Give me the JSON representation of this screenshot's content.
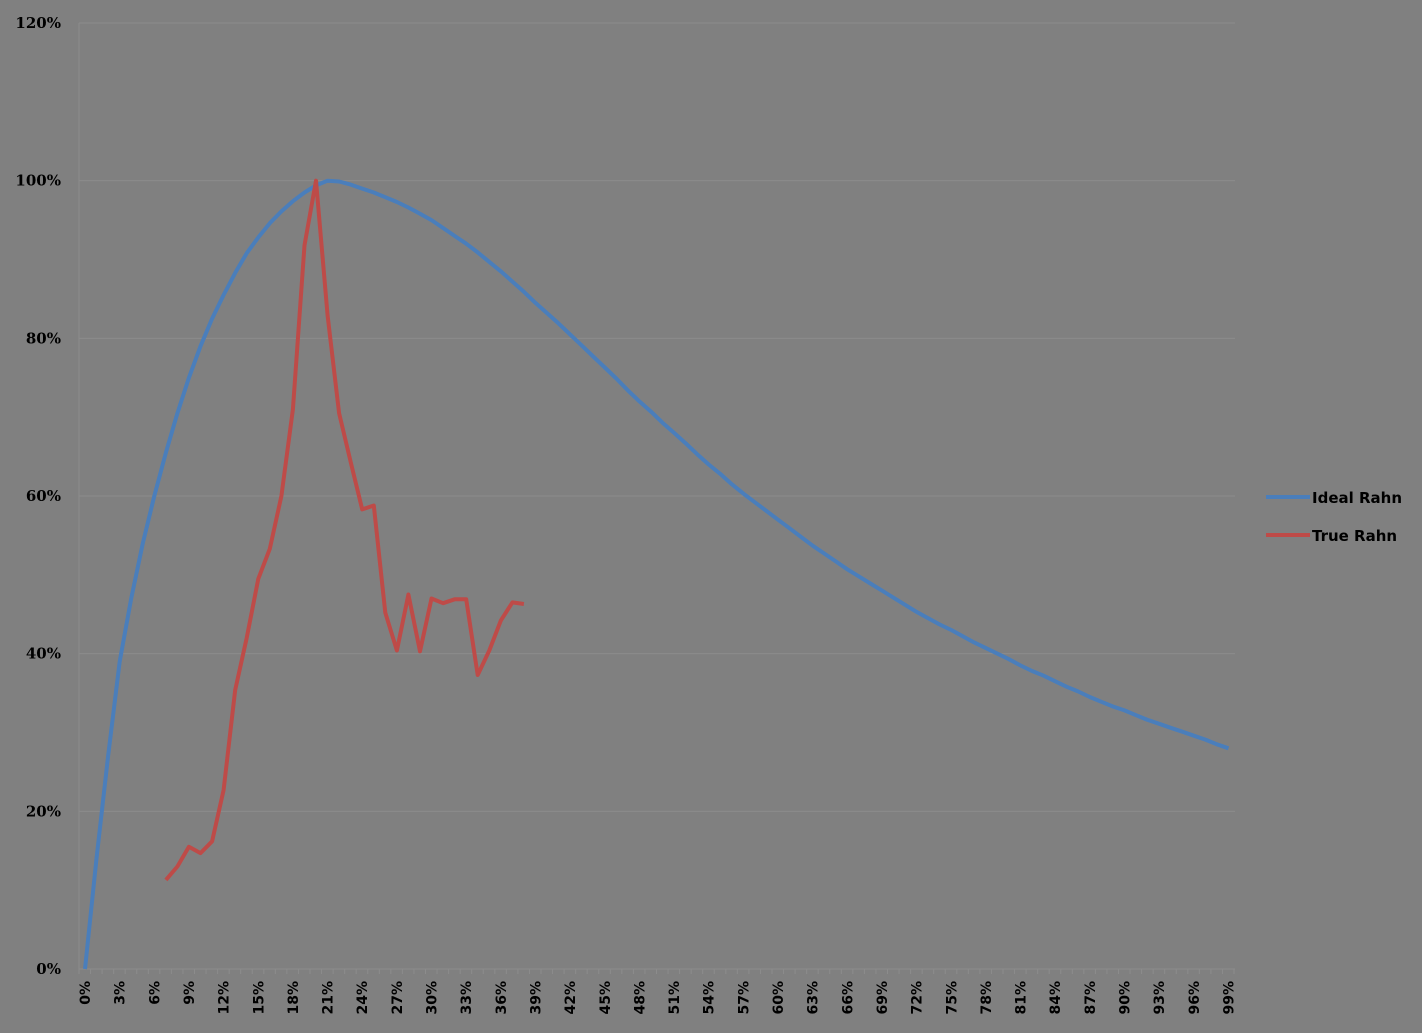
{
  "chart_data": {
    "type": "line",
    "title": "",
    "xlabel": "",
    "ylabel": "",
    "ylim": [
      0,
      1.2
    ],
    "y_ticks": [
      "0%",
      "20%",
      "40%",
      "60%",
      "80%",
      "100%",
      "120%"
    ],
    "x_tick_labels": [
      "0%",
      "3%",
      "6%",
      "9%",
      "12%",
      "15%",
      "18%",
      "21%",
      "24%",
      "27%",
      "30%",
      "33%",
      "36%",
      "39%",
      "42%",
      "45%",
      "48%",
      "51%",
      "54%",
      "57%",
      "60%",
      "63%",
      "66%",
      "69%",
      "72%",
      "75%",
      "78%",
      "81%",
      "84%",
      "87%",
      "90%",
      "93%",
      "96%",
      "99%"
    ],
    "x": [
      0,
      1,
      2,
      3,
      4,
      5,
      6,
      7,
      8,
      9,
      10,
      11,
      12,
      13,
      14,
      15,
      16,
      17,
      18,
      19,
      20,
      21,
      22,
      23,
      24,
      25,
      26,
      27,
      28,
      29,
      30,
      31,
      32,
      33,
      34,
      35,
      36,
      37,
      38,
      39,
      40,
      41,
      42,
      43,
      44,
      45,
      46,
      47,
      48,
      49,
      50,
      51,
      52,
      53,
      54,
      55,
      56,
      57,
      58,
      59,
      60,
      61,
      62,
      63,
      64,
      65,
      66,
      67,
      68,
      69,
      70,
      71,
      72,
      73,
      74,
      75,
      76,
      77,
      78,
      79,
      80,
      81,
      82,
      83,
      84,
      85,
      86,
      87,
      88,
      89,
      90,
      91,
      92,
      93,
      94,
      95,
      96,
      97,
      98,
      99
    ],
    "x_unit": "%",
    "grid": {
      "horizontal": true,
      "vertical": false
    },
    "legend_position": "right",
    "series": [
      {
        "name": "Ideal Rahn",
        "color": "#4A7EBB",
        "values": [
          0,
          14,
          27,
          39,
          47,
          54,
          60,
          65.5,
          70.5,
          75,
          79,
          82.5,
          85.5,
          88.3,
          90.8,
          92.8,
          94.6,
          96.1,
          97.4,
          98.5,
          99.4,
          100,
          99.9,
          99.5,
          99,
          98.5,
          97.9,
          97.3,
          96.6,
          95.8,
          95,
          94,
          93,
          92,
          90.9,
          89.7,
          88.5,
          87.2,
          85.9,
          84.5,
          83.2,
          81.9,
          80.5,
          79.1,
          77.7,
          76.3,
          74.9,
          73.4,
          72,
          70.7,
          69.3,
          68,
          66.7,
          65.3,
          64,
          62.8,
          61.5,
          60.3,
          59.2,
          58.1,
          57,
          55.9,
          54.8,
          53.7,
          52.7,
          51.7,
          50.7,
          49.8,
          48.9,
          48,
          47.1,
          46.2,
          45.3,
          44.5,
          43.7,
          43,
          42.2,
          41.4,
          40.7,
          40,
          39.3,
          38.5,
          37.8,
          37.2,
          36.5,
          35.8,
          35.2,
          34.5,
          33.9,
          33.3,
          32.8,
          32.2,
          31.6,
          31.1,
          30.6,
          30.1,
          29.6,
          29.1,
          28.5,
          28
        ]
      },
      {
        "name": "True Rahn",
        "color": "#BE4B48",
        "values": [
          null,
          null,
          null,
          null,
          null,
          null,
          null,
          11.3,
          13,
          15.5,
          14.7,
          16.2,
          22.7,
          35.4,
          42,
          49.5,
          53.3,
          60,
          71,
          91.8,
          100,
          82.9,
          70.5,
          64.3,
          58.3,
          58.8,
          45.2,
          40.4,
          47.5,
          40.3,
          47,
          46.4,
          46.9,
          46.9,
          37.3,
          40.4,
          44.2,
          46.5,
          46.3,
          null,
          null,
          null,
          null,
          null,
          null,
          null,
          null,
          null,
          null,
          null,
          null,
          null,
          null,
          null,
          null,
          null,
          null,
          null,
          null,
          null,
          null,
          null,
          null,
          null,
          null,
          null,
          null,
          null,
          null,
          null,
          null,
          null,
          null,
          null,
          null,
          null,
          null,
          null,
          null,
          null,
          null,
          null,
          null,
          null,
          null,
          null,
          null,
          null,
          null,
          null,
          null,
          null,
          null,
          null,
          null,
          null,
          null,
          null,
          null,
          null
        ]
      }
    ]
  },
  "legend": {
    "items": [
      {
        "label": "Ideal Rahn",
        "color": "#4A7EBB"
      },
      {
        "label": "True Rahn",
        "color": "#BE4B48"
      }
    ]
  },
  "colors": {
    "background": "#808080",
    "gridline": "#8C8C8C",
    "axis_text": "#000000"
  }
}
